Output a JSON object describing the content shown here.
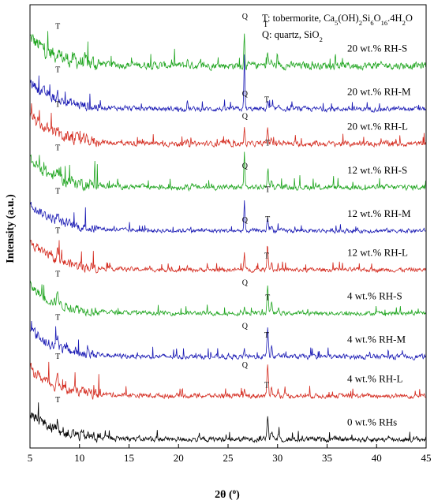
{
  "chart_data": {
    "type": "line",
    "xlabel": "2θ (",
    "xlabel_sup": "o",
    "xlabel_end": ")",
    "ylabel": "Intensity (a.u.)",
    "xlim": [
      5,
      45
    ],
    "xticks": [
      5,
      10,
      15,
      20,
      25,
      30,
      35,
      40,
      45
    ],
    "grid": false,
    "legend": {
      "placement": "top-right",
      "t_line": {
        "pre": "T: tobermorite, Ca",
        "s1": "5",
        "m1": "(OH)",
        "s2": "2",
        "m2": "Si",
        "s3": "6",
        "m3": "O",
        "s4": "16",
        "end": ".4H"
      },
      "t_line_tail": {
        "s5": "2",
        "end": "O"
      },
      "q_line": {
        "pre": "Q: quartz, SiO",
        "s1": "2"
      }
    },
    "series": [
      {
        "label": "20 wt.% RH-S",
        "color": "#1fa51f",
        "baseline": 86,
        "quartz": 0.9,
        "tob": 0.45,
        "noise": 1.4,
        "markers": [
          {
            "t": "T",
            "x": 7.8
          },
          {
            "t": "Q",
            "x": 26.7
          },
          {
            "t": "T",
            "x": 28.8
          }
        ]
      },
      {
        "label": "20 wt.% RH-M",
        "color": "#1a1ab4",
        "baseline": 76,
        "quartz": 1.45,
        "tob": 0.3,
        "noise": 0.9,
        "markers": [
          {
            "t": "T",
            "x": 7.8
          },
          {
            "t": "Q",
            "x": 26.7
          }
        ]
      },
      {
        "label": "20 wt.% RH-L",
        "color": "#d42a1e",
        "baseline": 68,
        "quartz": 0.45,
        "tob": 0.55,
        "noise": 1.0,
        "markers": [
          {
            "t": "T",
            "x": 7.8
          },
          {
            "t": "Q",
            "x": 26.7
          },
          {
            "t": "T",
            "x": 28.9
          }
        ]
      },
      {
        "label": "12 wt.% RH-S",
        "color": "#1fa51f",
        "baseline": 58,
        "quartz": 0.95,
        "tob": 0.55,
        "noise": 1.0,
        "markers": [
          {
            "t": "T",
            "x": 7.8
          },
          {
            "t": "Q",
            "x": 26.7
          },
          {
            "t": "T",
            "x": 29.0
          }
        ]
      },
      {
        "label": "12 wt.% RH-M",
        "color": "#1a1ab4",
        "baseline": 48,
        "quartz": 0.8,
        "tob": 0.45,
        "noise": 0.8,
        "markers": [
          {
            "t": "T",
            "x": 7.8
          },
          {
            "t": "Q",
            "x": 26.7
          },
          {
            "t": "T",
            "x": 29.0
          }
        ]
      },
      {
        "label": "12 wt.% RH-L",
        "color": "#d42a1e",
        "baseline": 39,
        "quartz": 0.45,
        "tob": 0.75,
        "noise": 0.8,
        "markers": [
          {
            "t": "T",
            "x": 7.8
          },
          {
            "t": "Q",
            "x": 26.7
          },
          {
            "t": "T",
            "x": 29.0
          }
        ]
      },
      {
        "label": "4 wt.% RH-S",
        "color": "#1fa51f",
        "baseline": 29,
        "quartz": 0.15,
        "tob": 0.95,
        "noise": 0.8,
        "markers": [
          {
            "t": "T",
            "x": 7.8
          },
          {
            "t": "Q",
            "x": 26.7
          },
          {
            "t": "T",
            "x": 28.9
          }
        ]
      },
      {
        "label": "4 wt.% RH-M",
        "color": "#1a1ab4",
        "baseline": 19,
        "quartz": 0.2,
        "tob": 1.0,
        "noise": 0.9,
        "markers": [
          {
            "t": "T",
            "x": 7.8
          },
          {
            "t": "Q",
            "x": 26.7
          },
          {
            "t": "T",
            "x": 29.0
          }
        ]
      },
      {
        "label": "4 wt.% RH-L",
        "color": "#d42a1e",
        "baseline": 10,
        "quartz": 0.1,
        "tob": 1.05,
        "noise": 0.9,
        "markers": [
          {
            "t": "T",
            "x": 7.8
          },
          {
            "t": "Q",
            "x": 26.7
          },
          {
            "t": "T",
            "x": 28.9
          }
        ]
      },
      {
        "label": "0 wt.% RHs",
        "color": "#000000",
        "baseline": 0,
        "quartz": 0.0,
        "tob": 0.85,
        "noise": 1.0,
        "markers": [
          {
            "t": "T",
            "x": 7.8
          },
          {
            "t": "T",
            "x": 28.9
          }
        ]
      }
    ]
  }
}
